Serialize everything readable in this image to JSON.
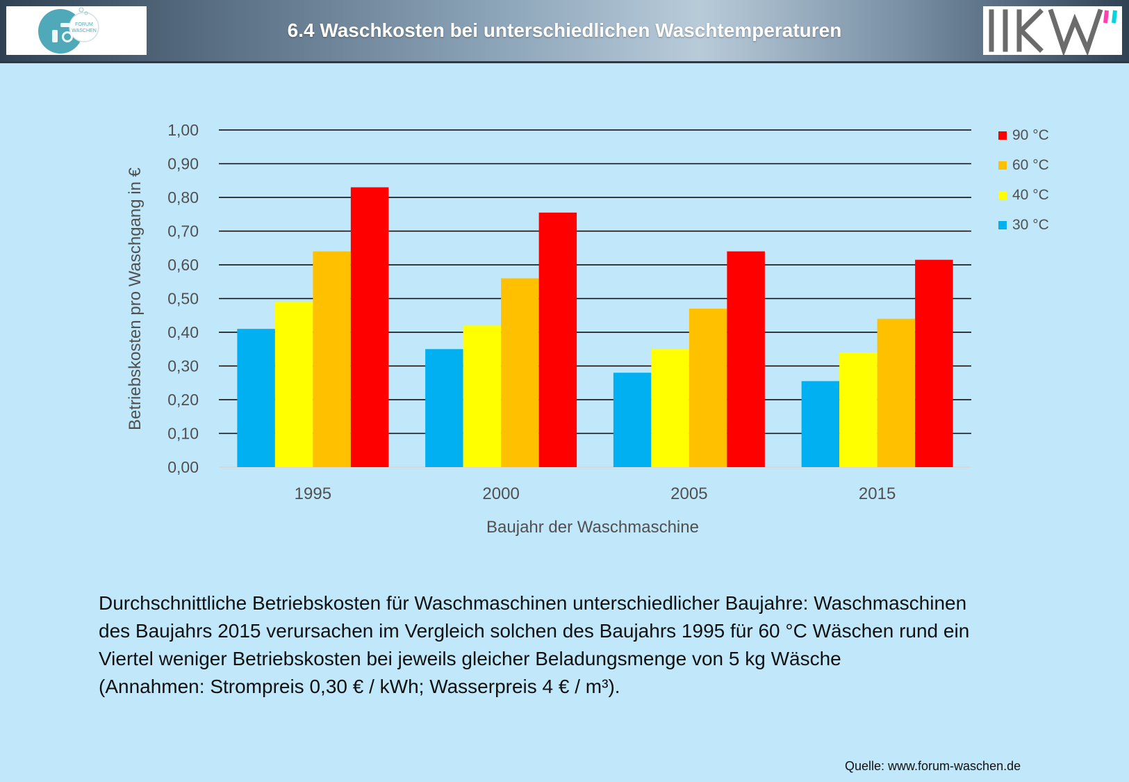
{
  "header": {
    "title": "6.4 Waschkosten bei unterschiedlichen Waschtemperaturen",
    "logo_left_text_line1": "FORUM",
    "logo_left_text_line2": "WASCHEN"
  },
  "chart_data": {
    "type": "bar",
    "title": "",
    "xlabel": "Baujahr der Waschmaschine",
    "ylabel": "Betriebskosten pro Waschgang in €",
    "ylim": [
      0,
      1.0
    ],
    "yticks": [
      "0,00",
      "0,10",
      "0,20",
      "0,30",
      "0,40",
      "0,50",
      "0,60",
      "0,70",
      "0,80",
      "0,90",
      "1,00"
    ],
    "grid": true,
    "legend_position": "right",
    "categories": [
      "1995",
      "2000",
      "2005",
      "2015"
    ],
    "series": [
      {
        "name": "30 °C",
        "color": "#00b0f0",
        "values": [
          0.41,
          0.35,
          0.28,
          0.255
        ]
      },
      {
        "name": "40 °C",
        "color": "#ffff00",
        "values": [
          0.49,
          0.42,
          0.35,
          0.34
        ]
      },
      {
        "name": "60 °C",
        "color": "#ffc000",
        "values": [
          0.64,
          0.56,
          0.47,
          0.44
        ]
      },
      {
        "name": "90 °C",
        "color": "#ff0000",
        "values": [
          0.83,
          0.755,
          0.64,
          0.615
        ]
      }
    ]
  },
  "caption": {
    "line1": "Durchschnittliche Betriebskosten für Waschmaschinen unterschiedlicher Baujahre: Waschmaschinen",
    "line2": "des Baujahrs 2015 verursachen im Vergleich solchen des Baujahrs 1995 für 60 °C Wäschen rund ein",
    "line3": "Viertel weniger Betriebskosten bei jeweils gleicher Beladungsmenge von 5 kg Wäsche",
    "line4": "(Annahmen: Strompreis 0,30 € / kWh; Wasserpreis 4 € / m³)."
  },
  "source": "Quelle: www.forum-waschen.de"
}
